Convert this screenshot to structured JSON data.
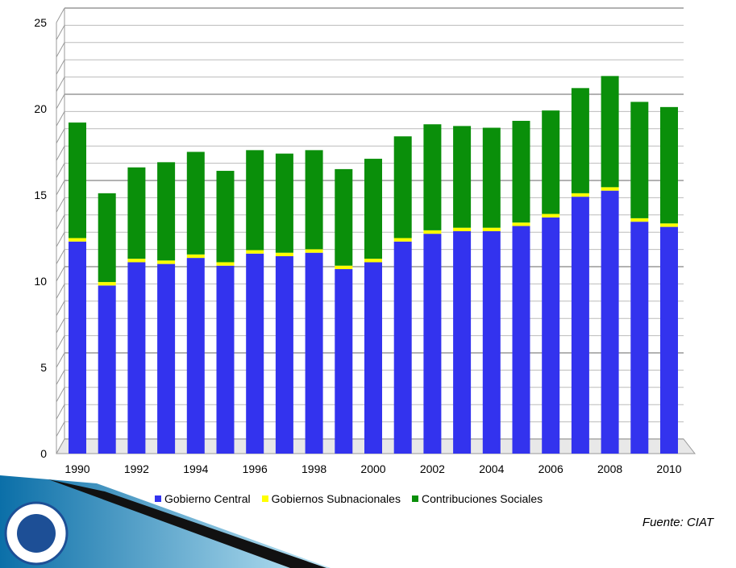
{
  "chart_data": {
    "type": "bar",
    "stacked": true,
    "title": "",
    "xlabel": "",
    "ylabel": "",
    "ylim": [
      0,
      25
    ],
    "yticks": [
      0,
      5,
      10,
      15,
      20,
      25
    ],
    "categories": [
      "1990",
      "1991",
      "1992",
      "1993",
      "1994",
      "1995",
      "1996",
      "1997",
      "1998",
      "1999",
      "2000",
      "2001",
      "2002",
      "2003",
      "2004",
      "2005",
      "2006",
      "2007",
      "2008",
      "2009",
      "2010"
    ],
    "xtick_labels": [
      "1990",
      "1992",
      "1994",
      "1996",
      "1998",
      "2000",
      "2002",
      "2004",
      "2006",
      "2008",
      "2010"
    ],
    "series": [
      {
        "name": "Gobierno Central",
        "color": "#3333ee",
        "values": [
          12.3,
          9.75,
          11.1,
          11.0,
          11.35,
          10.9,
          11.6,
          11.45,
          11.65,
          10.7,
          11.1,
          12.3,
          12.75,
          12.9,
          12.9,
          13.2,
          13.7,
          14.9,
          15.25,
          13.45,
          13.15
        ]
      },
      {
        "name": "Gobiernos Subnacionales",
        "color": "#ffff00",
        "values": [
          0.2,
          0.2,
          0.2,
          0.2,
          0.2,
          0.2,
          0.2,
          0.2,
          0.2,
          0.2,
          0.2,
          0.2,
          0.2,
          0.2,
          0.2,
          0.2,
          0.2,
          0.2,
          0.2,
          0.2,
          0.2
        ]
      },
      {
        "name": "Contribuciones Sociales",
        "color": "#0a8f0a",
        "values": [
          6.7,
          5.15,
          5.3,
          5.7,
          5.95,
          5.3,
          5.8,
          5.75,
          5.75,
          5.6,
          5.8,
          5.9,
          6.15,
          5.9,
          5.8,
          5.9,
          6.0,
          6.1,
          6.45,
          6.75,
          6.75
        ]
      }
    ],
    "grid": true,
    "legend_position": "bottom"
  },
  "source": "Fuente: CIAT"
}
